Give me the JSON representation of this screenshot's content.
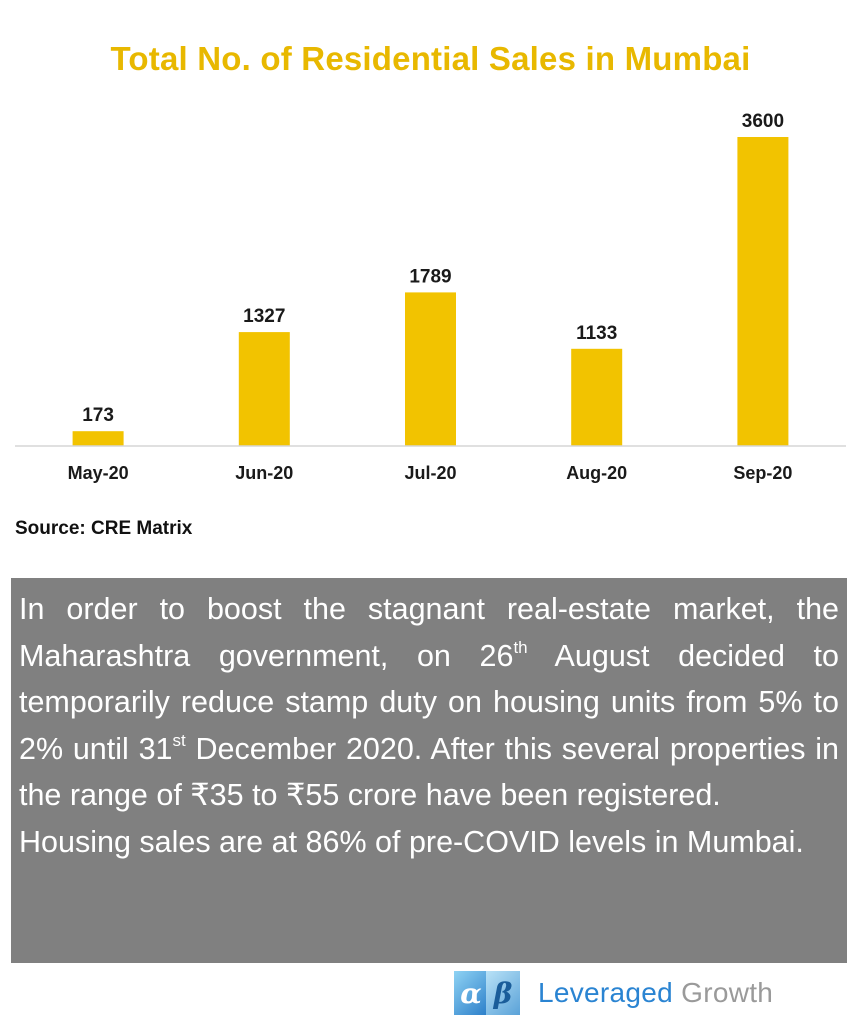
{
  "chart_data": {
    "type": "bar",
    "title": "Total No. of Residential Sales in Mumbai",
    "categories": [
      "May-20",
      "Jun-20",
      "Jul-20",
      "Aug-20",
      "Sep-20"
    ],
    "values": [
      173,
      1327,
      1789,
      1133,
      3600
    ],
    "data_labels": [
      "173",
      "1327",
      "1789",
      "1133",
      "3600"
    ],
    "ylim": [
      0,
      3600
    ],
    "grid": false,
    "legend": "none",
    "bar_color": "#f2c300"
  },
  "source": "Source: CRE Matrix",
  "text_box": {
    "para1_part1": "In order to boost the stagnant real-estate market, the Maharashtra government, on 26",
    "sup1": "th",
    "para1_part2": " August decided to temporarily reduce stamp duty on housing units from 5% to 2% until 31",
    "sup2": "st",
    "para1_part3": " December 2020. After this several properties in the range of ₹35 to ₹55 crore have been registered.",
    "para2": "Housing sales are at 86% of pre-COVID levels in Mumbai."
  },
  "logo": {
    "mark_a": "α",
    "mark_b": "β",
    "word1": "Leveraged",
    "word2": "Growth"
  },
  "colors": {
    "title": "#e8b800",
    "bar": "#f2c300",
    "text_box_bg": "#808080",
    "logo_blue": "#2a84d2",
    "logo_gray": "#9a9a9a"
  }
}
